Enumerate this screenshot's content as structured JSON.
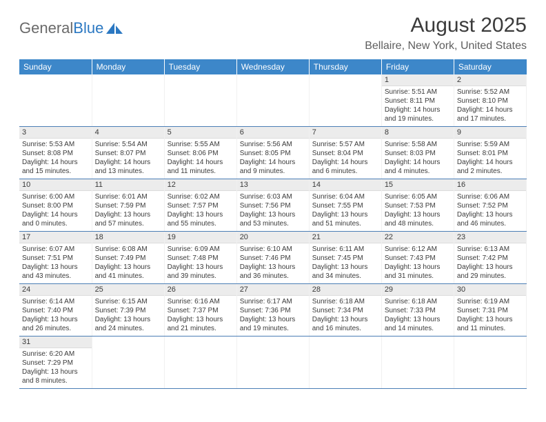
{
  "logo": {
    "text1": "General",
    "text2": "Blue"
  },
  "title": "August 2025",
  "location": "Bellaire, New York, United States",
  "colors": {
    "header_bg": "#3d87c9",
    "header_text": "#ffffff",
    "daynum_bg": "#ececec",
    "week_border": "#4a7db5",
    "text": "#3a3a3a",
    "logo_blue": "#2b78c2"
  },
  "day_headers": [
    "Sunday",
    "Monday",
    "Tuesday",
    "Wednesday",
    "Thursday",
    "Friday",
    "Saturday"
  ],
  "weeks": [
    [
      null,
      null,
      null,
      null,
      null,
      {
        "n": "1",
        "sr": "Sunrise: 5:51 AM",
        "ss": "Sunset: 8:11 PM",
        "d1": "Daylight: 14 hours",
        "d2": "and 19 minutes."
      },
      {
        "n": "2",
        "sr": "Sunrise: 5:52 AM",
        "ss": "Sunset: 8:10 PM",
        "d1": "Daylight: 14 hours",
        "d2": "and 17 minutes."
      }
    ],
    [
      {
        "n": "3",
        "sr": "Sunrise: 5:53 AM",
        "ss": "Sunset: 8:08 PM",
        "d1": "Daylight: 14 hours",
        "d2": "and 15 minutes."
      },
      {
        "n": "4",
        "sr": "Sunrise: 5:54 AM",
        "ss": "Sunset: 8:07 PM",
        "d1": "Daylight: 14 hours",
        "d2": "and 13 minutes."
      },
      {
        "n": "5",
        "sr": "Sunrise: 5:55 AM",
        "ss": "Sunset: 8:06 PM",
        "d1": "Daylight: 14 hours",
        "d2": "and 11 minutes."
      },
      {
        "n": "6",
        "sr": "Sunrise: 5:56 AM",
        "ss": "Sunset: 8:05 PM",
        "d1": "Daylight: 14 hours",
        "d2": "and 9 minutes."
      },
      {
        "n": "7",
        "sr": "Sunrise: 5:57 AM",
        "ss": "Sunset: 8:04 PM",
        "d1": "Daylight: 14 hours",
        "d2": "and 6 minutes."
      },
      {
        "n": "8",
        "sr": "Sunrise: 5:58 AM",
        "ss": "Sunset: 8:03 PM",
        "d1": "Daylight: 14 hours",
        "d2": "and 4 minutes."
      },
      {
        "n": "9",
        "sr": "Sunrise: 5:59 AM",
        "ss": "Sunset: 8:01 PM",
        "d1": "Daylight: 14 hours",
        "d2": "and 2 minutes."
      }
    ],
    [
      {
        "n": "10",
        "sr": "Sunrise: 6:00 AM",
        "ss": "Sunset: 8:00 PM",
        "d1": "Daylight: 14 hours",
        "d2": "and 0 minutes."
      },
      {
        "n": "11",
        "sr": "Sunrise: 6:01 AM",
        "ss": "Sunset: 7:59 PM",
        "d1": "Daylight: 13 hours",
        "d2": "and 57 minutes."
      },
      {
        "n": "12",
        "sr": "Sunrise: 6:02 AM",
        "ss": "Sunset: 7:57 PM",
        "d1": "Daylight: 13 hours",
        "d2": "and 55 minutes."
      },
      {
        "n": "13",
        "sr": "Sunrise: 6:03 AM",
        "ss": "Sunset: 7:56 PM",
        "d1": "Daylight: 13 hours",
        "d2": "and 53 minutes."
      },
      {
        "n": "14",
        "sr": "Sunrise: 6:04 AM",
        "ss": "Sunset: 7:55 PM",
        "d1": "Daylight: 13 hours",
        "d2": "and 51 minutes."
      },
      {
        "n": "15",
        "sr": "Sunrise: 6:05 AM",
        "ss": "Sunset: 7:53 PM",
        "d1": "Daylight: 13 hours",
        "d2": "and 48 minutes."
      },
      {
        "n": "16",
        "sr": "Sunrise: 6:06 AM",
        "ss": "Sunset: 7:52 PM",
        "d1": "Daylight: 13 hours",
        "d2": "and 46 minutes."
      }
    ],
    [
      {
        "n": "17",
        "sr": "Sunrise: 6:07 AM",
        "ss": "Sunset: 7:51 PM",
        "d1": "Daylight: 13 hours",
        "d2": "and 43 minutes."
      },
      {
        "n": "18",
        "sr": "Sunrise: 6:08 AM",
        "ss": "Sunset: 7:49 PM",
        "d1": "Daylight: 13 hours",
        "d2": "and 41 minutes."
      },
      {
        "n": "19",
        "sr": "Sunrise: 6:09 AM",
        "ss": "Sunset: 7:48 PM",
        "d1": "Daylight: 13 hours",
        "d2": "and 39 minutes."
      },
      {
        "n": "20",
        "sr": "Sunrise: 6:10 AM",
        "ss": "Sunset: 7:46 PM",
        "d1": "Daylight: 13 hours",
        "d2": "and 36 minutes."
      },
      {
        "n": "21",
        "sr": "Sunrise: 6:11 AM",
        "ss": "Sunset: 7:45 PM",
        "d1": "Daylight: 13 hours",
        "d2": "and 34 minutes."
      },
      {
        "n": "22",
        "sr": "Sunrise: 6:12 AM",
        "ss": "Sunset: 7:43 PM",
        "d1": "Daylight: 13 hours",
        "d2": "and 31 minutes."
      },
      {
        "n": "23",
        "sr": "Sunrise: 6:13 AM",
        "ss": "Sunset: 7:42 PM",
        "d1": "Daylight: 13 hours",
        "d2": "and 29 minutes."
      }
    ],
    [
      {
        "n": "24",
        "sr": "Sunrise: 6:14 AM",
        "ss": "Sunset: 7:40 PM",
        "d1": "Daylight: 13 hours",
        "d2": "and 26 minutes."
      },
      {
        "n": "25",
        "sr": "Sunrise: 6:15 AM",
        "ss": "Sunset: 7:39 PM",
        "d1": "Daylight: 13 hours",
        "d2": "and 24 minutes."
      },
      {
        "n": "26",
        "sr": "Sunrise: 6:16 AM",
        "ss": "Sunset: 7:37 PM",
        "d1": "Daylight: 13 hours",
        "d2": "and 21 minutes."
      },
      {
        "n": "27",
        "sr": "Sunrise: 6:17 AM",
        "ss": "Sunset: 7:36 PM",
        "d1": "Daylight: 13 hours",
        "d2": "and 19 minutes."
      },
      {
        "n": "28",
        "sr": "Sunrise: 6:18 AM",
        "ss": "Sunset: 7:34 PM",
        "d1": "Daylight: 13 hours",
        "d2": "and 16 minutes."
      },
      {
        "n": "29",
        "sr": "Sunrise: 6:18 AM",
        "ss": "Sunset: 7:33 PM",
        "d1": "Daylight: 13 hours",
        "d2": "and 14 minutes."
      },
      {
        "n": "30",
        "sr": "Sunrise: 6:19 AM",
        "ss": "Sunset: 7:31 PM",
        "d1": "Daylight: 13 hours",
        "d2": "and 11 minutes."
      }
    ],
    [
      {
        "n": "31",
        "sr": "Sunrise: 6:20 AM",
        "ss": "Sunset: 7:29 PM",
        "d1": "Daylight: 13 hours",
        "d2": "and 8 minutes."
      },
      null,
      null,
      null,
      null,
      null,
      null
    ]
  ]
}
